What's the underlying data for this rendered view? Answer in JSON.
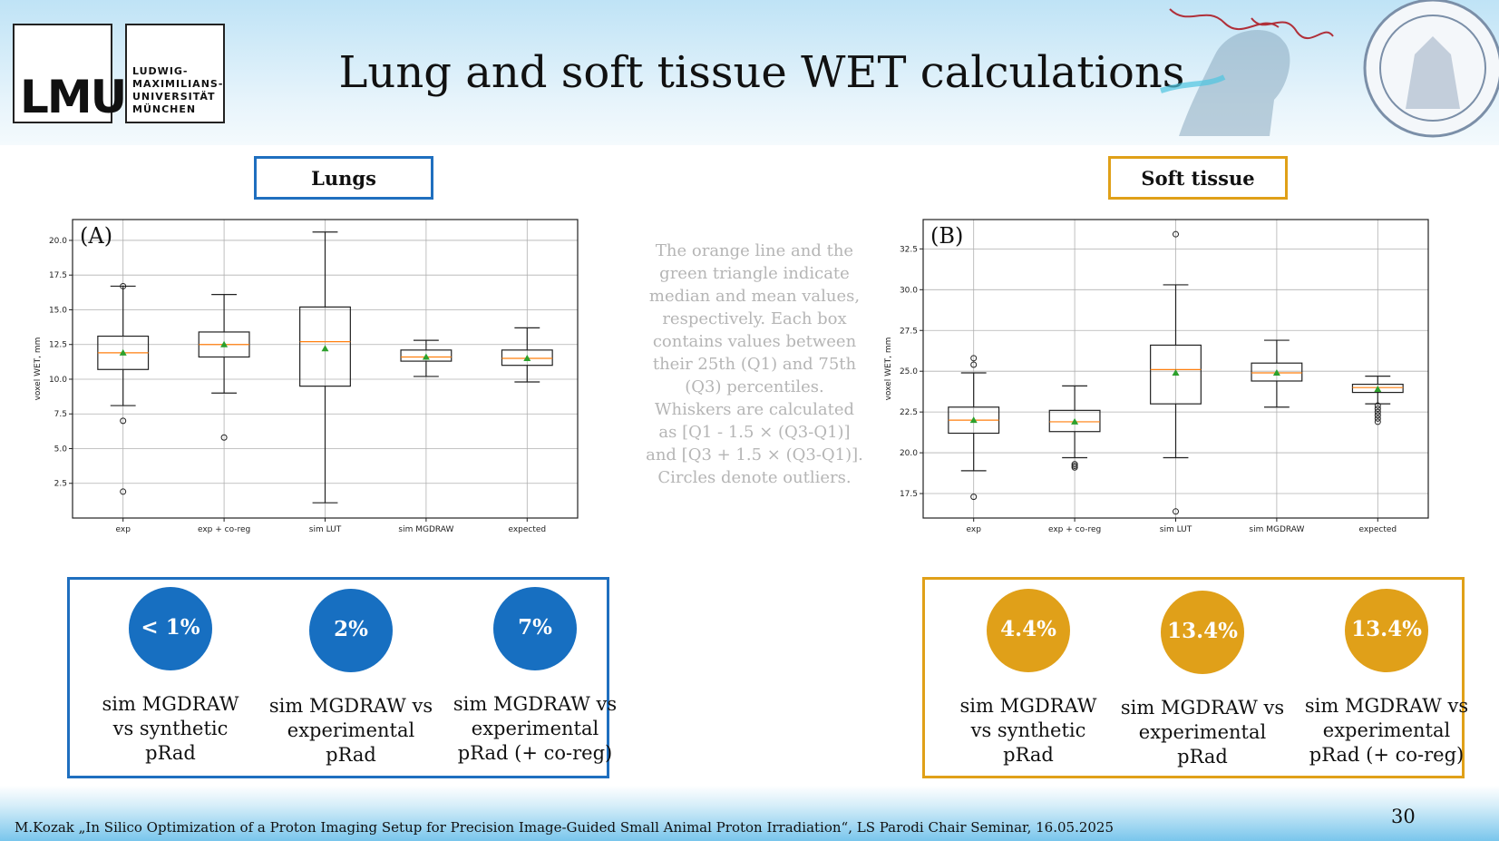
{
  "header": {
    "logo_mark": "LMU",
    "logo_name": [
      "LUDWIG-",
      "MAXIMILIANS-",
      "UNIVERSITÄT",
      "MÜNCHEN"
    ],
    "title": "Lung and soft tissue WET calculations"
  },
  "lungs_label": "Lungs",
  "soft_label": "Soft tissue",
  "note": "The orange line and the green triangle indicate median and mean values, respectively. Each box contains values between their 25th (Q1) and 75th (Q3) percentiles. Whiskers are calculated as [Q1 - 1.5 × (Q3-Q1)] and [Q3 + 1.5 × (Q3-Q1)]. Circles denote outliers.",
  "chart_data": [
    {
      "type": "box",
      "panel_label": "(A)",
      "ylabel": "voxel WET, mm",
      "ylim": [
        0.0,
        21.5
      ],
      "yticks": [
        2.5,
        5.0,
        7.5,
        10.0,
        12.5,
        15.0,
        17.5,
        20.0
      ],
      "grid": true,
      "categories": [
        "exp",
        "exp + co-reg",
        "sim LUT",
        "sim MGDRAW",
        "expected"
      ],
      "boxes": [
        {
          "whisker_low": 8.1,
          "q1": 10.7,
          "median": 11.9,
          "q3": 13.1,
          "whisker_high": 16.7,
          "mean": 11.9,
          "outliers": [
            1.9,
            7.0,
            16.7
          ]
        },
        {
          "whisker_low": 9.0,
          "q1": 11.6,
          "median": 12.5,
          "q3": 13.4,
          "whisker_high": 16.1,
          "mean": 12.5,
          "outliers": [
            5.8
          ]
        },
        {
          "whisker_low": 1.1,
          "q1": 9.5,
          "median": 12.7,
          "q3": 15.2,
          "whisker_high": 20.6,
          "mean": 12.2,
          "outliers": []
        },
        {
          "whisker_low": 10.2,
          "q1": 11.3,
          "median": 11.6,
          "q3": 12.1,
          "whisker_high": 12.8,
          "mean": 11.6,
          "outliers": []
        },
        {
          "whisker_low": 9.8,
          "q1": 11.0,
          "median": 11.5,
          "q3": 12.1,
          "whisker_high": 13.7,
          "mean": 11.5,
          "outliers": []
        }
      ]
    },
    {
      "type": "box",
      "panel_label": "(B)",
      "ylabel": "voxel WET, mm",
      "ylim": [
        16.0,
        34.3
      ],
      "yticks": [
        17.5,
        20.0,
        22.5,
        25.0,
        27.5,
        30.0,
        32.5
      ],
      "grid": true,
      "categories": [
        "exp",
        "exp + co-reg",
        "sim LUT",
        "sim MGDRAW",
        "expected"
      ],
      "boxes": [
        {
          "whisker_low": 18.9,
          "q1": 21.2,
          "median": 22.0,
          "q3": 22.8,
          "whisker_high": 24.9,
          "mean": 22.0,
          "outliers": [
            17.3,
            25.4,
            25.8
          ]
        },
        {
          "whisker_low": 19.7,
          "q1": 21.3,
          "median": 21.9,
          "q3": 22.6,
          "whisker_high": 24.1,
          "mean": 21.9,
          "outliers": [
            19.1,
            19.2,
            19.3
          ]
        },
        {
          "whisker_low": 19.7,
          "q1": 23.0,
          "median": 25.1,
          "q3": 26.6,
          "whisker_high": 30.3,
          "mean": 24.9,
          "outliers": [
            16.4,
            33.4
          ]
        },
        {
          "whisker_low": 22.8,
          "q1": 24.4,
          "median": 24.9,
          "q3": 25.5,
          "whisker_high": 26.9,
          "mean": 24.9,
          "outliers": []
        },
        {
          "whisker_low": 23.0,
          "q1": 23.7,
          "median": 24.0,
          "q3": 24.2,
          "whisker_high": 24.7,
          "mean": 23.9,
          "outliers": [
            21.9,
            22.1,
            22.3,
            22.5,
            22.7,
            22.9
          ]
        }
      ]
    }
  ],
  "lungs_stats": [
    {
      "value": "< 1%",
      "lines": [
        "sim MGDRAW",
        "vs synthetic",
        "pRad"
      ]
    },
    {
      "value": "2%",
      "lines": [
        "sim MGDRAW vs",
        "experimental",
        "pRad"
      ]
    },
    {
      "value": "7%",
      "lines": [
        "sim MGDRAW vs",
        "experimental",
        "pRad (+ co-reg)"
      ]
    }
  ],
  "soft_stats": [
    {
      "value": "4.4%",
      "lines": [
        "sim MGDRAW",
        "vs synthetic",
        "pRad"
      ]
    },
    {
      "value": "13.4%",
      "lines": [
        "sim MGDRAW vs",
        "experimental",
        "pRad"
      ]
    },
    {
      "value": "13.4%",
      "lines": [
        "sim MGDRAW vs",
        "experimental",
        "pRad (+ co-reg)"
      ]
    }
  ],
  "colors": {
    "lungs_accent": "#176fc1",
    "soft_accent": "#e0a019",
    "median_line": "#ff7f0e",
    "mean_marker": "#2ca02c"
  },
  "footer": {
    "citation": "M.Kozak „In Silico Optimization of a Proton Imaging Setup for Precision Image-Guided Small Animal Proton Irradiation“, LS Parodi Chair Seminar, 16.05.2025",
    "page": "30"
  }
}
